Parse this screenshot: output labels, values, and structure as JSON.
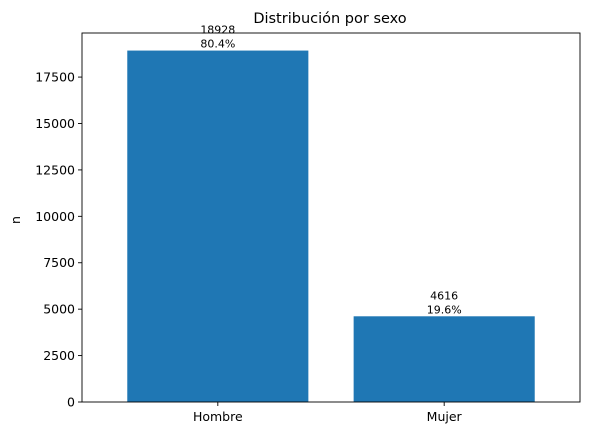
{
  "chart_data": {
    "type": "bar",
    "title": "Distribución por sexo",
    "xlabel": "",
    "ylabel": "n",
    "categories": [
      "Hombre",
      "Mujer"
    ],
    "values": [
      18928,
      4616
    ],
    "bar_labels": [
      {
        "count": "18928",
        "percent": "80.4%"
      },
      {
        "count": "4616",
        "percent": "19.6%"
      }
    ],
    "ylim": [
      0,
      19874
    ],
    "yticks": [
      0,
      2500,
      5000,
      7500,
      10000,
      12500,
      15000,
      17500
    ],
    "ytick_labels": [
      "0",
      "2500",
      "5000",
      "7500",
      "10000",
      "12500",
      "15000",
      "17500"
    ],
    "grid": false,
    "bar_color": "#1f77b4"
  }
}
